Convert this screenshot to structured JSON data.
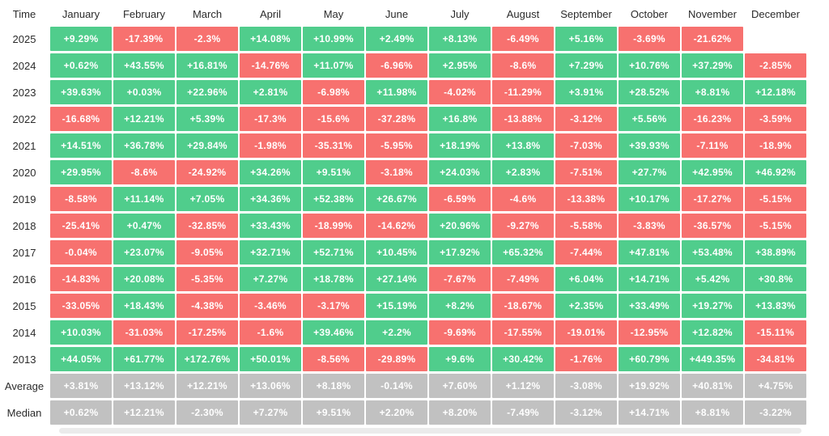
{
  "chart_data": {
    "type": "heatmap",
    "columns": [
      "Time",
      "January",
      "February",
      "March",
      "April",
      "May",
      "June",
      "July",
      "August",
      "September",
      "October",
      "November",
      "December"
    ],
    "rows": [
      {
        "label": "2025",
        "summary": false,
        "values": [
          "+9.29%",
          "-17.39%",
          "-2.3%",
          "+14.08%",
          "+10.99%",
          "+2.49%",
          "+8.13%",
          "-6.49%",
          "+5.16%",
          "-3.69%",
          "-21.62%",
          ""
        ]
      },
      {
        "label": "2024",
        "summary": false,
        "values": [
          "+0.62%",
          "+43.55%",
          "+16.81%",
          "-14.76%",
          "+11.07%",
          "-6.96%",
          "+2.95%",
          "-8.6%",
          "+7.29%",
          "+10.76%",
          "+37.29%",
          "-2.85%"
        ]
      },
      {
        "label": "2023",
        "summary": false,
        "values": [
          "+39.63%",
          "+0.03%",
          "+22.96%",
          "+2.81%",
          "-6.98%",
          "+11.98%",
          "-4.02%",
          "-11.29%",
          "+3.91%",
          "+28.52%",
          "+8.81%",
          "+12.18%"
        ]
      },
      {
        "label": "2022",
        "summary": false,
        "values": [
          "-16.68%",
          "+12.21%",
          "+5.39%",
          "-17.3%",
          "-15.6%",
          "-37.28%",
          "+16.8%",
          "-13.88%",
          "-3.12%",
          "+5.56%",
          "-16.23%",
          "-3.59%"
        ]
      },
      {
        "label": "2021",
        "summary": false,
        "values": [
          "+14.51%",
          "+36.78%",
          "+29.84%",
          "-1.98%",
          "-35.31%",
          "-5.95%",
          "+18.19%",
          "+13.8%",
          "-7.03%",
          "+39.93%",
          "-7.11%",
          "-18.9%"
        ]
      },
      {
        "label": "2020",
        "summary": false,
        "values": [
          "+29.95%",
          "-8.6%",
          "-24.92%",
          "+34.26%",
          "+9.51%",
          "-3.18%",
          "+24.03%",
          "+2.83%",
          "-7.51%",
          "+27.7%",
          "+42.95%",
          "+46.92%"
        ]
      },
      {
        "label": "2019",
        "summary": false,
        "values": [
          "-8.58%",
          "+11.14%",
          "+7.05%",
          "+34.36%",
          "+52.38%",
          "+26.67%",
          "-6.59%",
          "-4.6%",
          "-13.38%",
          "+10.17%",
          "-17.27%",
          "-5.15%"
        ]
      },
      {
        "label": "2018",
        "summary": false,
        "values": [
          "-25.41%",
          "+0.47%",
          "-32.85%",
          "+33.43%",
          "-18.99%",
          "-14.62%",
          "+20.96%",
          "-9.27%",
          "-5.58%",
          "-3.83%",
          "-36.57%",
          "-5.15%"
        ]
      },
      {
        "label": "2017",
        "summary": false,
        "values": [
          "-0.04%",
          "+23.07%",
          "-9.05%",
          "+32.71%",
          "+52.71%",
          "+10.45%",
          "+17.92%",
          "+65.32%",
          "-7.44%",
          "+47.81%",
          "+53.48%",
          "+38.89%"
        ]
      },
      {
        "label": "2016",
        "summary": false,
        "values": [
          "-14.83%",
          "+20.08%",
          "-5.35%",
          "+7.27%",
          "+18.78%",
          "+27.14%",
          "-7.67%",
          "-7.49%",
          "+6.04%",
          "+14.71%",
          "+5.42%",
          "+30.8%"
        ]
      },
      {
        "label": "2015",
        "summary": false,
        "values": [
          "-33.05%",
          "+18.43%",
          "-4.38%",
          "-3.46%",
          "-3.17%",
          "+15.19%",
          "+8.2%",
          "-18.67%",
          "+2.35%",
          "+33.49%",
          "+19.27%",
          "+13.83%"
        ]
      },
      {
        "label": "2014",
        "summary": false,
        "values": [
          "+10.03%",
          "-31.03%",
          "-17.25%",
          "-1.6%",
          "+39.46%",
          "+2.2%",
          "-9.69%",
          "-17.55%",
          "-19.01%",
          "-12.95%",
          "+12.82%",
          "-15.11%"
        ]
      },
      {
        "label": "2013",
        "summary": false,
        "values": [
          "+44.05%",
          "+61.77%",
          "+172.76%",
          "+50.01%",
          "-8.56%",
          "-29.89%",
          "+9.6%",
          "+30.42%",
          "-1.76%",
          "+60.79%",
          "+449.35%",
          "-34.81%"
        ]
      },
      {
        "label": "Average",
        "summary": true,
        "values": [
          "+3.81%",
          "+13.12%",
          "+12.21%",
          "+13.06%",
          "+8.18%",
          "-0.14%",
          "+7.60%",
          "+1.12%",
          "-3.08%",
          "+19.92%",
          "+40.81%",
          "+4.75%"
        ]
      },
      {
        "label": "Median",
        "summary": true,
        "values": [
          "+0.62%",
          "+12.21%",
          "-2.30%",
          "+7.27%",
          "+9.51%",
          "+2.20%",
          "+8.20%",
          "-7.49%",
          "-3.12%",
          "+14.71%",
          "+8.81%",
          "-3.22%"
        ]
      }
    ],
    "colors": {
      "positive": "#50CD8C",
      "negative": "#F7716F",
      "summary": "#C1C1C1",
      "cell_text": "#FFFFFF",
      "header_text": "#2B2B2B"
    },
    "legend_position": "none",
    "grid": false
  }
}
